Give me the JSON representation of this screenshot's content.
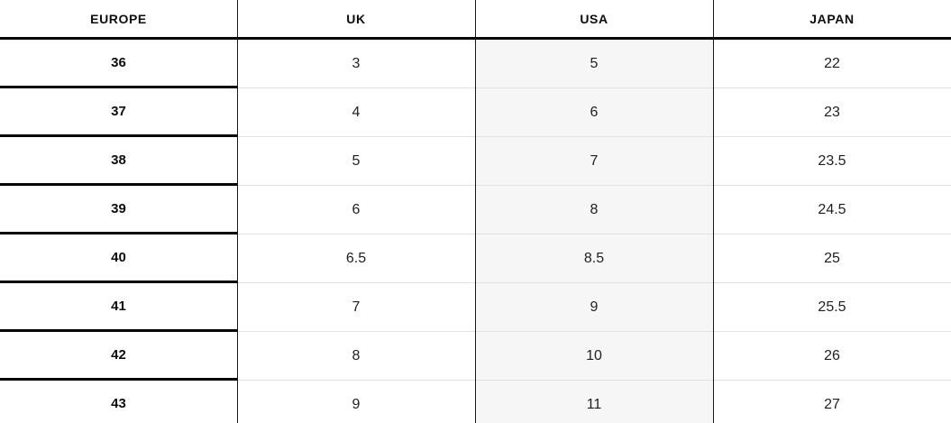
{
  "table": {
    "headers": [
      "EUROPE",
      "UK",
      "USA",
      "JAPAN"
    ],
    "rows": [
      [
        "36",
        "3",
        "5",
        "22"
      ],
      [
        "37",
        "4",
        "6",
        "23"
      ],
      [
        "38",
        "5",
        "7",
        "23.5"
      ],
      [
        "39",
        "6",
        "8",
        "24.5"
      ],
      [
        "40",
        "6.5",
        "8.5",
        "25"
      ],
      [
        "41",
        "7",
        "9",
        "25.5"
      ],
      [
        "42",
        "8",
        "10",
        "26"
      ],
      [
        "43",
        "9",
        "11",
        "27"
      ]
    ]
  },
  "chart_data": {
    "type": "table",
    "columns": [
      "EUROPE",
      "UK",
      "USA",
      "JAPAN"
    ],
    "rows": [
      [
        36,
        3,
        5,
        22
      ],
      [
        37,
        4,
        6,
        23
      ],
      [
        38,
        5,
        7,
        23.5
      ],
      [
        39,
        6,
        8,
        24.5
      ],
      [
        40,
        6.5,
        8.5,
        25
      ],
      [
        41,
        7,
        9,
        25.5
      ],
      [
        42,
        8,
        10,
        26
      ],
      [
        43,
        9,
        11,
        27
      ]
    ],
    "layout": {
      "highlighted_column": "USA",
      "grid": "on",
      "header_position": "top"
    }
  },
  "colors": {
    "heavy_border": "#060606",
    "light_border": "#e2e2e2",
    "vertical_divider": "#161616",
    "usa_column_bg": "#f6f6f6",
    "text": "#1f1f1f"
  }
}
